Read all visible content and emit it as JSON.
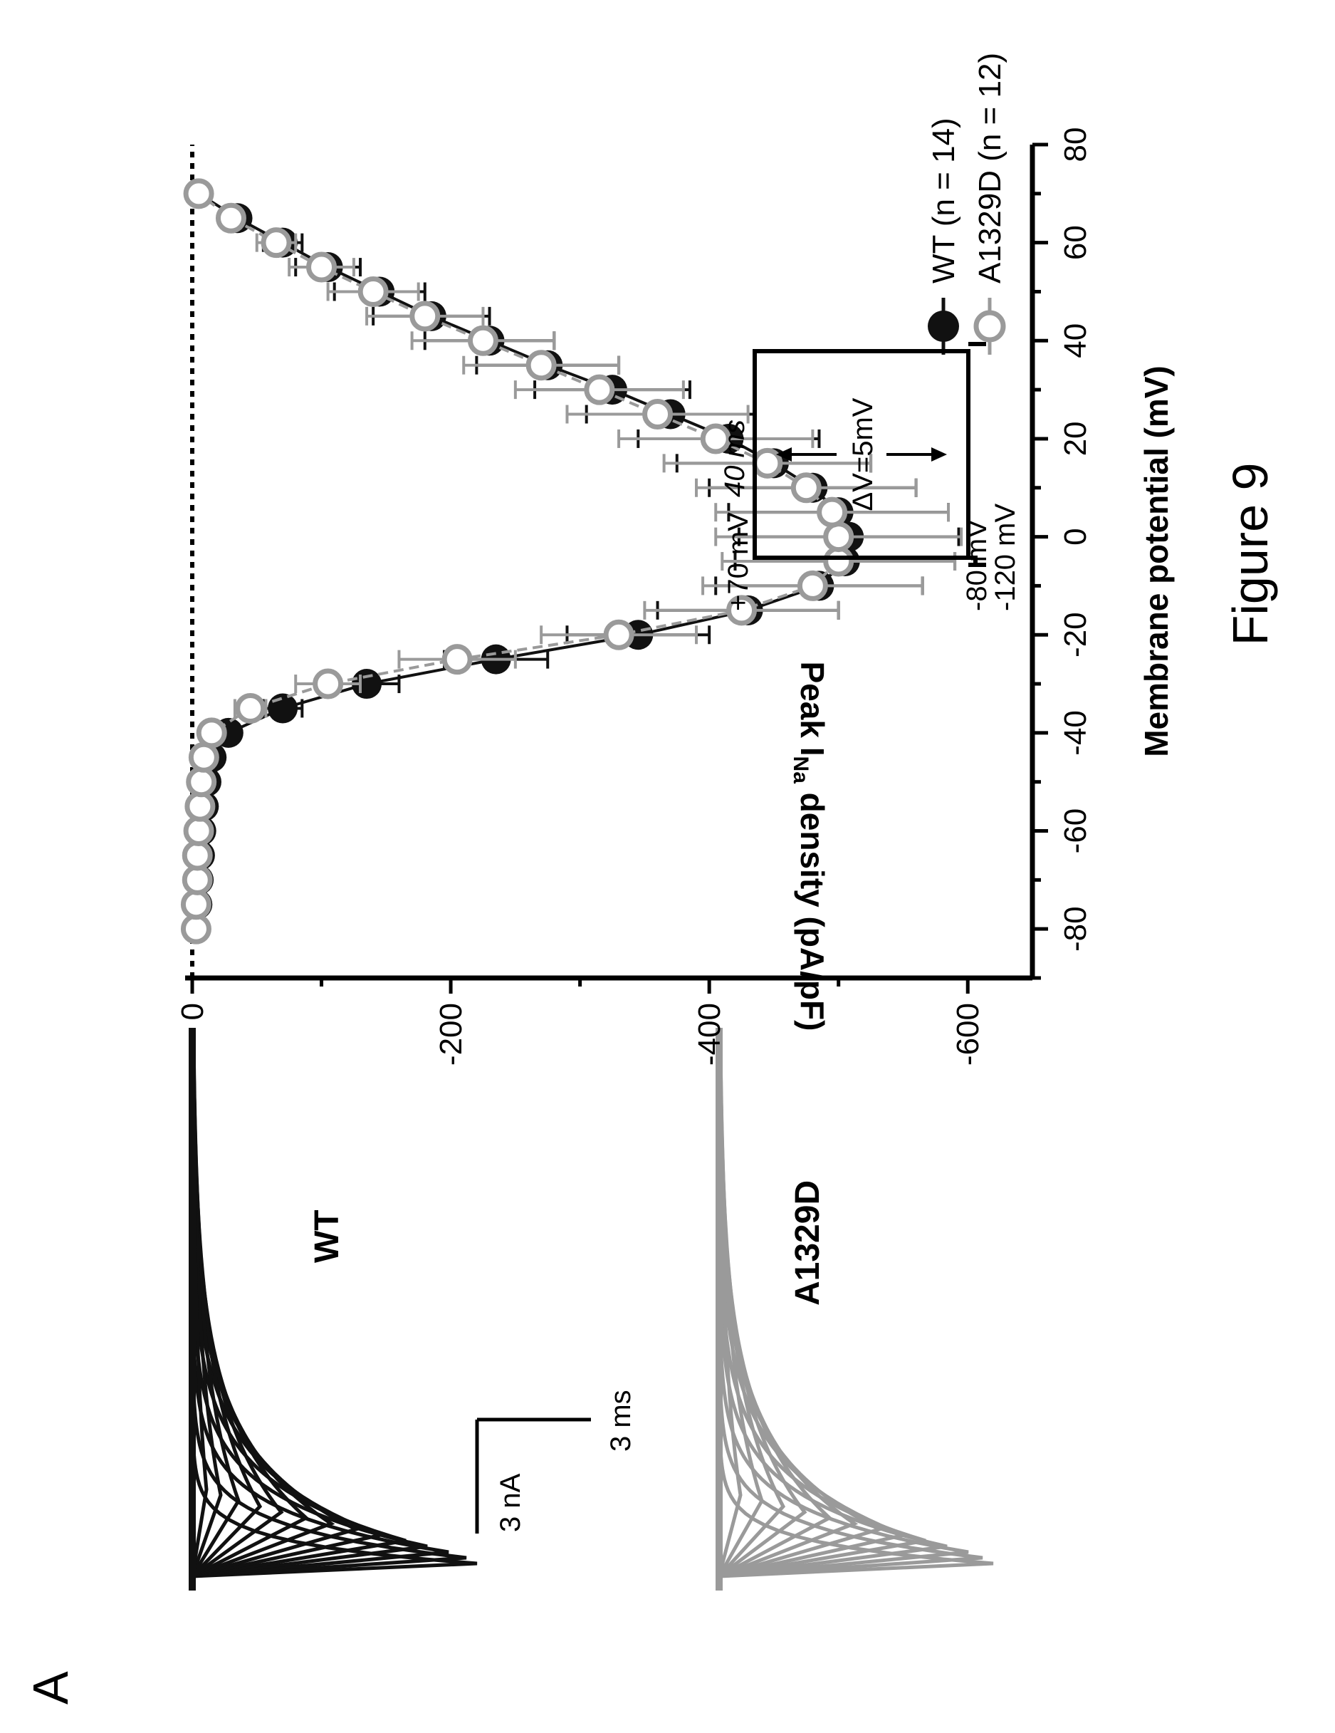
{
  "panel_label": "A",
  "figure_caption": "Figure 9",
  "colors": {
    "wt": "#111111",
    "mut": "#9a9a9a",
    "axis": "#000000"
  },
  "chart_data": [
    {
      "type": "line",
      "name": "current-traces",
      "series": [
        {
          "name": "WT",
          "color": "#111111"
        },
        {
          "name": "A1329D",
          "color": "#9a9a9a"
        }
      ],
      "scalebar": {
        "current_label": "3 nA",
        "time_label": "3 ms"
      }
    },
    {
      "type": "scatter",
      "xlabel": "Membrane potential (mV)",
      "ylabel_main": "Peak I",
      "ylabel_sub": "Na",
      "ylabel_rest": " density (pA/pF)",
      "xlim": [
        -90,
        80
      ],
      "ylim": [
        -650,
        0
      ],
      "x_ticks": [
        -80,
        -60,
        -40,
        -20,
        0,
        20,
        40,
        60,
        80
      ],
      "y_ticks": [
        0,
        -200,
        -400,
        -600
      ],
      "zero_line": true,
      "legend_position": "bottom-right",
      "x": [
        -80,
        -75,
        -70,
        -65,
        -60,
        -55,
        -50,
        -45,
        -40,
        -35,
        -30,
        -25,
        -20,
        -15,
        -10,
        -5,
        0,
        5,
        10,
        15,
        20,
        25,
        30,
        35,
        40,
        45,
        50,
        55,
        60,
        65,
        70
      ],
      "series": [
        {
          "name": "WT (n = 14)",
          "marker": "filled",
          "y": [
            -3,
            -4,
            -5,
            -6,
            -7,
            -9,
            -11,
            -15,
            -28,
            -70,
            -135,
            -235,
            -345,
            -430,
            -485,
            -505,
            -508,
            -500,
            -480,
            -450,
            -415,
            -370,
            -325,
            -275,
            -230,
            -185,
            -145,
            -105,
            -70,
            -35,
            -5
          ],
          "err": [
            3,
            3,
            3,
            3,
            3,
            4,
            4,
            5,
            8,
            15,
            25,
            40,
            55,
            70,
            80,
            85,
            85,
            85,
            80,
            75,
            70,
            65,
            60,
            55,
            50,
            45,
            35,
            25,
            15,
            8,
            3
          ]
        },
        {
          "name": "A1329D (n = 12)",
          "marker": "open",
          "y": [
            -3,
            -3,
            -4,
            -4,
            -5,
            -6,
            -7,
            -9,
            -15,
            -45,
            -105,
            -205,
            -330,
            -425,
            -480,
            -500,
            -500,
            -495,
            -475,
            -445,
            -405,
            -360,
            -315,
            -270,
            -225,
            -180,
            -140,
            -100,
            -65,
            -30,
            -5
          ],
          "err": [
            3,
            3,
            3,
            3,
            3,
            3,
            4,
            4,
            6,
            12,
            25,
            45,
            60,
            75,
            85,
            90,
            95,
            90,
            85,
            80,
            75,
            70,
            65,
            60,
            55,
            45,
            35,
            25,
            15,
            8,
            3
          ]
        }
      ],
      "inset": {
        "top_label": "+70 mV",
        "hold_label": "-80 mV",
        "rest_label": "-120 mV",
        "duration_label": "40 ms",
        "step_label": "ΔV=5mV"
      }
    }
  ]
}
